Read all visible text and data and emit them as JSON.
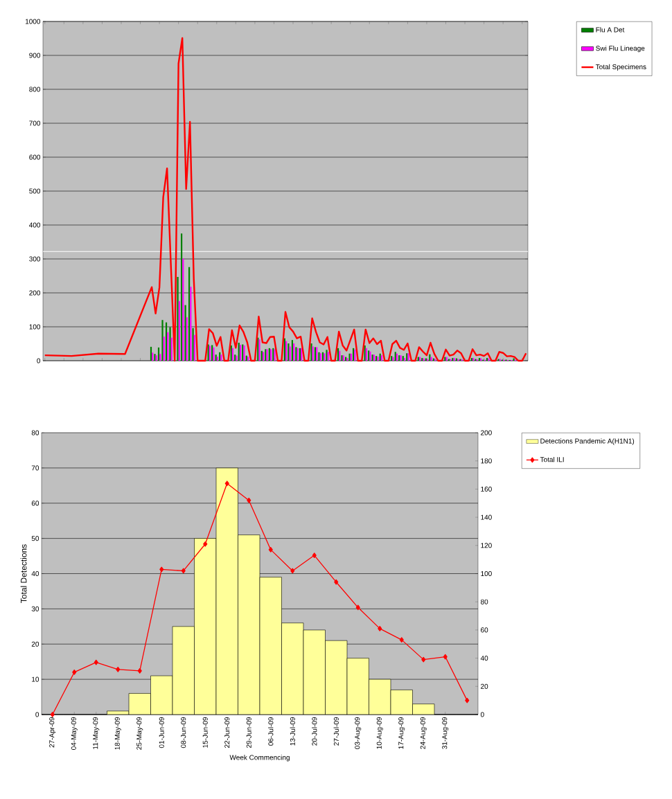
{
  "chart_data": [
    {
      "type": "bar",
      "categories": [
        null,
        null,
        null,
        null,
        null,
        null,
        null,
        null,
        null,
        null,
        null,
        null,
        null,
        null,
        null,
        null,
        null,
        null,
        null,
        null,
        null,
        null,
        null,
        null,
        null,
        null,
        null,
        null,
        null,
        null,
        null,
        null,
        null,
        null,
        null,
        null,
        null,
        null,
        null,
        null,
        null,
        null,
        null,
        null,
        null,
        null,
        null,
        null,
        null,
        null,
        null,
        null,
        null,
        null,
        null,
        null,
        null,
        null,
        null,
        null,
        null,
        null,
        null,
        null,
        null,
        null,
        null,
        null,
        null,
        null,
        null,
        null,
        null,
        null,
        null,
        null,
        null,
        null,
        null,
        null,
        null,
        null,
        null,
        null,
        null,
        null,
        null,
        null,
        null,
        null,
        null,
        null,
        null,
        null,
        null,
        null,
        null,
        null,
        null,
        null,
        null,
        null,
        null,
        null,
        null,
        null,
        null,
        null,
        null,
        null,
        null,
        null,
        null,
        null,
        null,
        null,
        null,
        null,
        null,
        null,
        null,
        null,
        null,
        null,
        null,
        null,
        null
      ],
      "series": [
        {
          "name": "Flu A Det",
          "color": "#008000",
          "values": [
            null,
            null,
            null,
            null,
            null,
            null,
            null,
            null,
            null,
            null,
            null,
            null,
            null,
            null,
            null,
            null,
            null,
            null,
            null,
            null,
            null,
            null,
            null,
            null,
            null,
            null,
            null,
            null,
            41,
            20,
            39,
            120,
            113,
            99,
            null,
            247,
            375,
            164,
            276,
            96,
            null,
            null,
            null,
            48,
            46,
            18,
            25,
            null,
            null,
            45,
            18,
            53,
            48,
            15,
            null,
            null,
            68,
            29,
            34,
            37,
            37,
            null,
            null,
            66,
            51,
            61,
            40,
            37,
            null,
            null,
            51,
            40,
            25,
            25,
            32,
            null,
            null,
            37,
            16,
            11,
            21,
            37,
            null,
            null,
            45,
            30,
            18,
            14,
            21,
            null,
            null,
            14,
            26,
            16,
            14,
            22,
            null,
            null,
            11,
            8,
            7,
            19,
            7,
            null,
            null,
            11,
            5,
            8,
            7,
            5,
            null,
            null,
            8,
            5,
            8,
            3,
            8,
            null,
            null,
            5,
            3,
            3,
            2,
            7,
            null,
            null,
            null
          ]
        },
        {
          "name": "Swi Flu Lineage",
          "color": "#ff00ff",
          "values": [
            null,
            null,
            null,
            null,
            null,
            null,
            null,
            null,
            null,
            null,
            null,
            null,
            null,
            null,
            null,
            null,
            null,
            null,
            null,
            null,
            null,
            null,
            null,
            null,
            null,
            null,
            null,
            null,
            24,
            16,
            20,
            71,
            84,
            68,
            null,
            176,
            301,
            128,
            218,
            76,
            null,
            null,
            null,
            44,
            39,
            12,
            18,
            null,
            null,
            37,
            15,
            47,
            45,
            12,
            null,
            null,
            63,
            26,
            34,
            34,
            34,
            null,
            null,
            58,
            42,
            51,
            37,
            37,
            null,
            null,
            42,
            40,
            22,
            22,
            26,
            null,
            null,
            29,
            16,
            8,
            21,
            33,
            null,
            null,
            37,
            27,
            18,
            12,
            16,
            null,
            null,
            11,
            21,
            16,
            8,
            22,
            null,
            null,
            11,
            7,
            5,
            11,
            5,
            null,
            null,
            11,
            5,
            8,
            5,
            4,
            null,
            null,
            8,
            4,
            7,
            3,
            7,
            null,
            null,
            5,
            3,
            2,
            2,
            3,
            null,
            null,
            null
          ]
        },
        {
          "name": "Total Specimens",
          "type": "line",
          "color": "#ff0000",
          "values": [
            16,
            null,
            null,
            null,
            null,
            null,
            null,
            14,
            null,
            null,
            null,
            null,
            null,
            null,
            21,
            null,
            null,
            null,
            null,
            null,
            null,
            20,
            null,
            null,
            null,
            null,
            null,
            null,
            217,
            139,
            216,
            482,
            567,
            null,
            0,
            876,
            951,
            506,
            704,
            241,
            0,
            0,
            0,
            93,
            81,
            44,
            70,
            0,
            0,
            90,
            38,
            104,
            85,
            54,
            0,
            0,
            130,
            54,
            52,
            70,
            71,
            0,
            0,
            144,
            99,
            86,
            66,
            71,
            0,
            0,
            125,
            85,
            54,
            48,
            70,
            0,
            0,
            86,
            45,
            30,
            61,
            92,
            0,
            0,
            92,
            52,
            66,
            49,
            59,
            0,
            0,
            49,
            59,
            38,
            32,
            51,
            0,
            0,
            40,
            27,
            16,
            53,
            20,
            0,
            0,
            33,
            15,
            18,
            30,
            22,
            0,
            0,
            34,
            16,
            18,
            14,
            22,
            0,
            0,
            26,
            23,
            13,
            14,
            11,
            0,
            0,
            22
          ]
        }
      ],
      "ylim": [
        0,
        1000
      ],
      "yticks": [
        0,
        100,
        200,
        300,
        400,
        500,
        600,
        700,
        800,
        900,
        1000
      ],
      "grid": "y",
      "legend": "right",
      "ref_lines": [
        {
          "axis": "y",
          "value": 322,
          "color": "#ffffff"
        }
      ]
    },
    {
      "type": "bar",
      "categories": [
        "27-Apr-09",
        "04-May-09",
        "11-May-09",
        "18-May-09",
        "25-May-09",
        "01-Jun-09",
        "08-Jun-09",
        "15-Jun-09",
        "22-Jun-09",
        "29-Jun-09",
        "06-Jul-09",
        "13-Jul-09",
        "20-Jul-09",
        "27-Jul-09",
        "03-Aug-09",
        "10-Aug-09",
        "17-Aug-09",
        "24-Aug-09",
        "31-Aug-09",
        null
      ],
      "series": [
        {
          "name": "Detections Pandemic A(H1N1)",
          "color": "#ffff99",
          "values": [
            0,
            0,
            0,
            1,
            6,
            11,
            25,
            50,
            70,
            51,
            39,
            26,
            24,
            21,
            16,
            10,
            7,
            3,
            0,
            0
          ]
        },
        {
          "name": "Total ILI",
          "type": "line",
          "axis": "y2",
          "color": "#ff0000",
          "marker": "diamond",
          "values": [
            0,
            30,
            37,
            32,
            31,
            103,
            102,
            121,
            164,
            152,
            117,
            102,
            113,
            94,
            76,
            61,
            53,
            39,
            41,
            10
          ]
        }
      ],
      "ylabel": "Total Detections",
      "xlabel": "Week Commencing",
      "ylim": [
        0,
        80
      ],
      "yticks": [
        0,
        10,
        20,
        30,
        40,
        50,
        60,
        70,
        80
      ],
      "y2lim": [
        0,
        200
      ],
      "y2ticks": [
        0,
        20,
        40,
        60,
        80,
        100,
        120,
        140,
        160,
        180,
        200
      ],
      "grid": "y",
      "legend": "right"
    }
  ]
}
